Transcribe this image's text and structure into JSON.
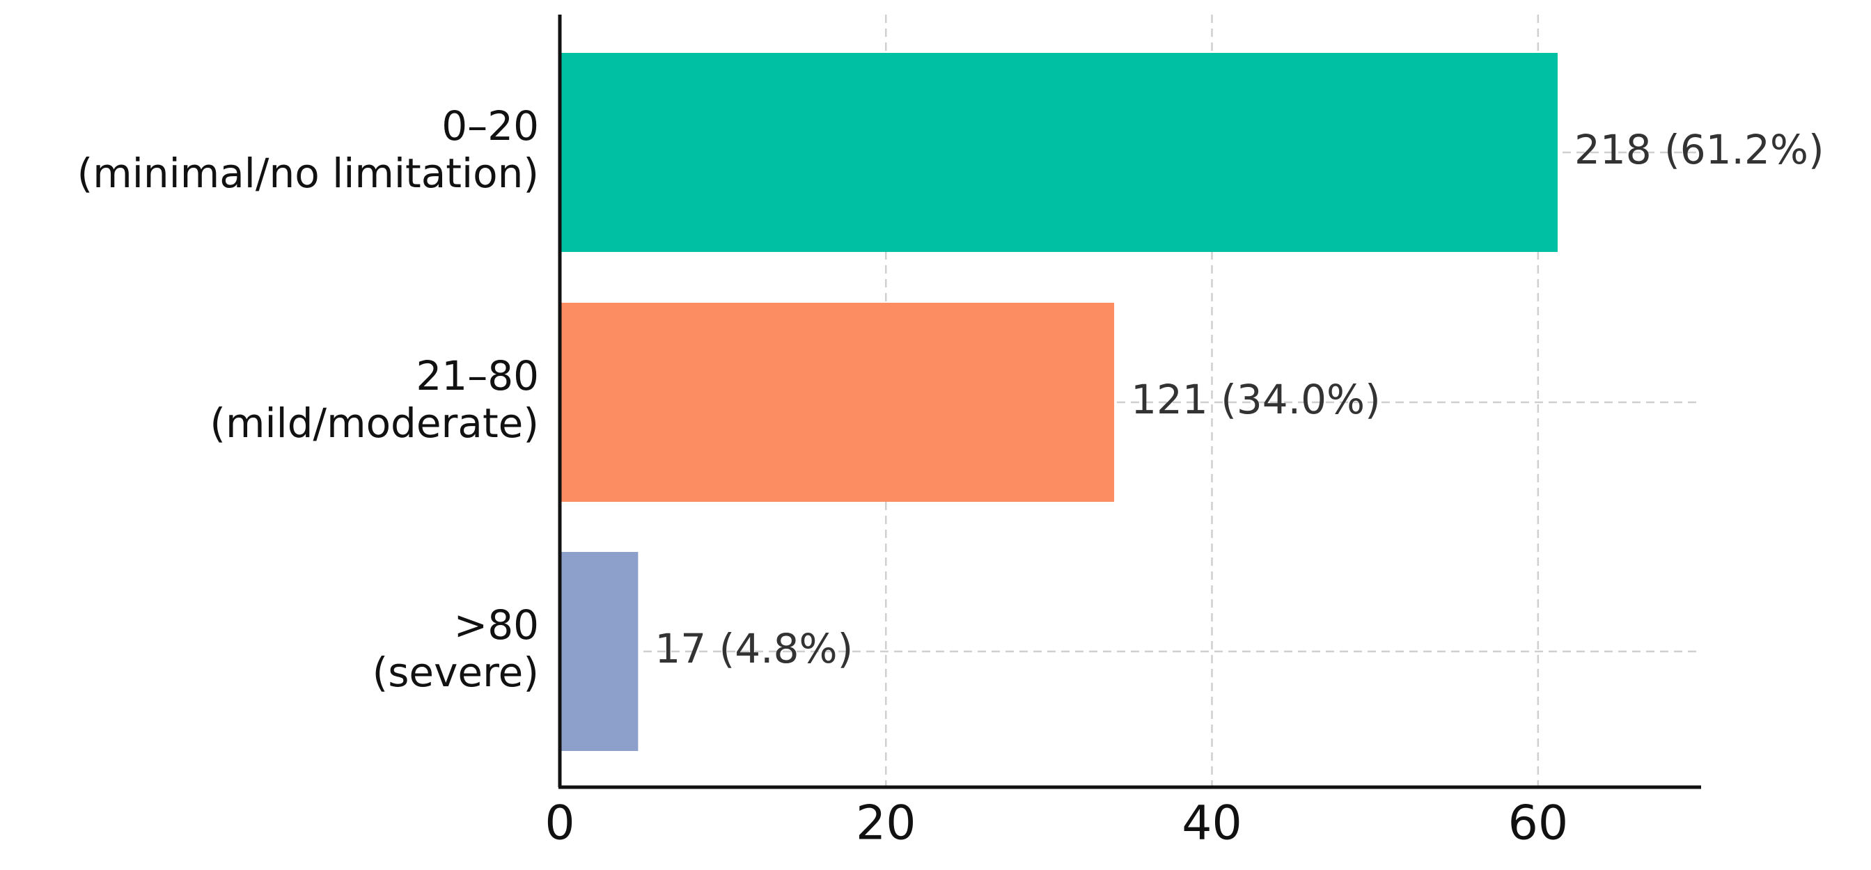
{
  "chart_data": {
    "type": "hbar",
    "categories": [
      [
        "0–20",
        "(minimal/no limitation)"
      ],
      [
        "21–80",
        "(mild/moderate)"
      ],
      [
        ">80",
        "(severe)"
      ]
    ],
    "values": [
      61.2,
      34.0,
      4.8
    ],
    "value_labels": [
      "218 (61.2%)",
      "121 (34.0%)",
      "17 (4.8%)"
    ],
    "colors": [
      "#00c0a3",
      "#fc8d62",
      "#8da0cb"
    ],
    "xlim": [
      0,
      70
    ],
    "xticks": [
      0,
      20,
      40,
      60
    ],
    "grid": true
  }
}
